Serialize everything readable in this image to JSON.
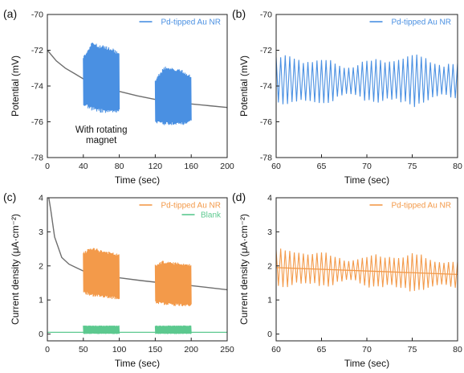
{
  "chart_data": [
    {
      "panel_label": "(a)",
      "type": "line",
      "xlabel": "Time (sec)",
      "ylabel": "Potential (mV)",
      "xlim": [
        0,
        200
      ],
      "ylim": [
        -78,
        -70
      ],
      "xticks": [
        0,
        40,
        80,
        120,
        160,
        200
      ],
      "yticks": [
        -78,
        -76,
        -74,
        -72,
        -70
      ],
      "legend": {
        "position": "top-right",
        "entries": [
          {
            "label": "Pd-tipped Au NR",
            "color": "#4a90e2"
          }
        ]
      },
      "annotations": [
        {
          "text": "With rotating",
          "x": 60,
          "y": -76.6
        },
        {
          "text": "magnet",
          "x": 60,
          "y": -77.2
        }
      ],
      "series": [
        {
          "role": "baseline",
          "color": "#6e6e6e",
          "x": [
            0,
            10,
            20,
            30,
            40,
            60,
            80,
            100,
            120,
            140,
            160,
            180,
            200
          ],
          "y": [
            -72.0,
            -72.6,
            -73.0,
            -73.3,
            -73.6,
            -74.0,
            -74.3,
            -74.55,
            -74.75,
            -74.9,
            -75.0,
            -75.1,
            -75.2
          ]
        },
        {
          "name": "Pd-tipped Au NR",
          "role": "oscillation",
          "color": "#4a90e2",
          "segments": [
            {
              "x_range": [
                40,
                80
              ],
              "band_upper": [
                [
                  40,
                  -72.3
                ],
                [
                  50,
                  -71.5
                ],
                [
                  60,
                  -71.7
                ],
                [
                  70,
                  -71.8
                ],
                [
                  80,
                  -72.1
                ]
              ],
              "band_lower": [
                [
                  40,
                  -75.1
                ],
                [
                  50,
                  -75.4
                ],
                [
                  60,
                  -75.5
                ],
                [
                  70,
                  -75.5
                ],
                [
                  80,
                  -75.5
                ]
              ]
            },
            {
              "x_range": [
                120,
                160
              ],
              "band_upper": [
                [
                  120,
                  -73.6
                ],
                [
                  130,
                  -72.9
                ],
                [
                  140,
                  -73.0
                ],
                [
                  150,
                  -73.1
                ],
                [
                  160,
                  -73.4
                ]
              ],
              "band_lower": [
                [
                  120,
                  -76.1
                ],
                [
                  130,
                  -76.2
                ],
                [
                  140,
                  -76.2
                ],
                [
                  150,
                  -76.2
                ],
                [
                  160,
                  -76.0
                ]
              ]
            }
          ]
        }
      ]
    },
    {
      "panel_label": "(b)",
      "type": "line",
      "xlabel": "Time (sec)",
      "ylabel": "Potential (mV)",
      "xlim": [
        60,
        80
      ],
      "ylim": [
        -78,
        -70
      ],
      "xticks": [
        60,
        65,
        70,
        75,
        80
      ],
      "yticks": [
        -78,
        -76,
        -74,
        -72,
        -70
      ],
      "legend": {
        "position": "top-right",
        "entries": [
          {
            "label": "Pd-tipped Au NR",
            "color": "#4a90e2"
          }
        ]
      },
      "series": [
        {
          "name": "Pd-tipped Au NR",
          "color": "#4a90e2",
          "center": -73.7,
          "amplitude": 1.55,
          "period_sec": 0.5
        }
      ]
    },
    {
      "panel_label": "(c)",
      "type": "line",
      "xlabel": "Time (sec)",
      "ylabel": "Current density (μA·cm⁻²)",
      "xlim": [
        0,
        250
      ],
      "ylim": [
        -0.2,
        4
      ],
      "xticks": [
        0,
        50,
        100,
        150,
        200,
        250
      ],
      "yticks": [
        0,
        1,
        2,
        3,
        4
      ],
      "legend": {
        "position": "top-right",
        "entries": [
          {
            "label": "Pd-tipped Au NR",
            "color": "#f39a4a"
          },
          {
            "label": "Blank",
            "color": "#5cc98f"
          }
        ]
      },
      "series": [
        {
          "role": "baseline",
          "color": "#6e6e6e",
          "x": [
            2,
            5,
            10,
            20,
            30,
            40,
            50,
            70,
            100,
            130,
            160,
            200,
            250
          ],
          "y": [
            4.0,
            3.6,
            2.85,
            2.25,
            2.05,
            1.95,
            1.85,
            1.75,
            1.65,
            1.57,
            1.5,
            1.42,
            1.3
          ]
        },
        {
          "name": "Pd-tipped Au NR",
          "role": "oscillation",
          "color": "#f39a4a",
          "segments": [
            {
              "x_range": [
                50,
                100
              ],
              "band_upper": [
                [
                  50,
                  2.4
                ],
                [
                  60,
                  2.55
                ],
                [
                  80,
                  2.45
                ],
                [
                  100,
                  2.35
                ]
              ],
              "band_lower": [
                [
                  50,
                  1.2
                ],
                [
                  60,
                  1.1
                ],
                [
                  80,
                  1.05
                ],
                [
                  100,
                  1.0
                ]
              ]
            },
            {
              "x_range": [
                150,
                200
              ],
              "band_upper": [
                [
                  150,
                  2.05
                ],
                [
                  160,
                  2.15
                ],
                [
                  180,
                  2.1
                ],
                [
                  200,
                  2.05
                ]
              ],
              "band_lower": [
                [
                  150,
                  0.9
                ],
                [
                  160,
                  0.85
                ],
                [
                  180,
                  0.82
                ],
                [
                  200,
                  0.8
                ]
              ]
            }
          ]
        },
        {
          "name": "Blank",
          "role": "oscillation",
          "color": "#5cc98f",
          "baseline_value": 0.05,
          "segments": [
            {
              "x_range": [
                50,
                100
              ],
              "band_upper": [
                [
                  50,
                  0.25
                ],
                [
                  100,
                  0.25
                ]
              ],
              "band_lower": [
                [
                  50,
                  0.0
                ],
                [
                  100,
                  0.0
                ]
              ]
            },
            {
              "x_range": [
                150,
                200
              ],
              "band_upper": [
                [
                  150,
                  0.25
                ],
                [
                  200,
                  0.25
                ]
              ],
              "band_lower": [
                [
                  150,
                  0.0
                ],
                [
                  200,
                  0.0
                ]
              ]
            }
          ]
        }
      ]
    },
    {
      "panel_label": "(d)",
      "type": "line",
      "xlabel": "Time (sec)",
      "ylabel": "Current density (μA·cm⁻²)",
      "xlim": [
        60,
        80
      ],
      "ylim": [
        -0.2,
        4
      ],
      "xticks": [
        60,
        65,
        70,
        75,
        80
      ],
      "yticks": [
        0,
        1,
        2,
        3,
        4
      ],
      "legend": {
        "position": "top-right",
        "entries": [
          {
            "label": "Pd-tipped Au NR",
            "color": "#f39a4a"
          }
        ]
      },
      "series": [
        {
          "name": "Pd-tipped Au NR",
          "color": "#f39a4a",
          "x": [
            60,
            80
          ],
          "y": [
            1.95,
            1.75
          ],
          "role": "trend"
        },
        {
          "name": "Pd-tipped Au NR",
          "color": "#f39a4a",
          "center_start": 1.95,
          "center_end": 1.75,
          "amplitude": 0.6,
          "period_sec": 0.5,
          "role": "oscillation"
        }
      ]
    }
  ]
}
